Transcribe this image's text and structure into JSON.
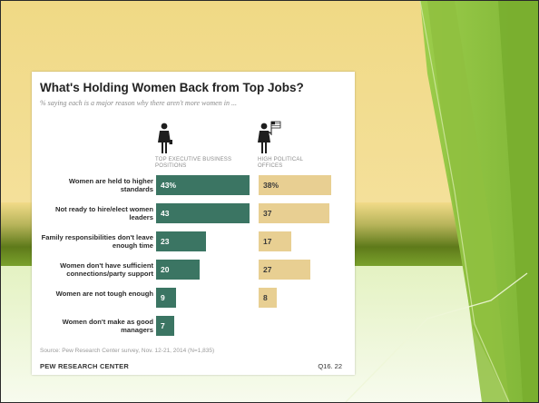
{
  "colors": {
    "slide_top": "#f2da87",
    "slide_green_dark": "#5a7a16",
    "slide_green_light": "#8cc63f",
    "bar_left": "#3b7563",
    "bar_right": "#e8cf92"
  },
  "chart": {
    "title": "What's Holding Women Back from Top Jobs?",
    "subtitle": "% saying each is a major reason why there aren't more women in ...",
    "source": "Source: Pew Research Center survey, Nov. 12-21, 2014 (N=1,835)",
    "org": "PEW RESEARCH CENTER",
    "question_code": "Q16. 22",
    "icons": [
      "businesswoman-icon",
      "politician-woman-flag-icon"
    ]
  },
  "chart_data": {
    "type": "bar",
    "title": "What's Holding Women Back from Top Jobs?",
    "subtitle": "% saying each is a major reason why there aren't more women in ...",
    "categories": [
      "Women are held to higher standards",
      "Not ready to hire/elect women leaders",
      "Family responsibilities don't leave enough time",
      "Women don't have sufficient connections/party support",
      "Women are not tough enough",
      "Women don't make as good managers"
    ],
    "series": [
      {
        "name": "TOP EXECUTIVE BUSINESS POSITIONS",
        "values": [
          43,
          43,
          23,
          20,
          9,
          7
        ],
        "labels": [
          "43%",
          "43",
          "23",
          "20",
          "9",
          "7"
        ]
      },
      {
        "name": "HIGH POLITICAL OFFICES",
        "values": [
          38,
          37,
          17,
          27,
          8,
          null
        ],
        "labels": [
          "38%",
          "37",
          "17",
          "27",
          "8",
          ""
        ]
      }
    ],
    "xlim": [
      0,
      43
    ],
    "grid": false
  }
}
